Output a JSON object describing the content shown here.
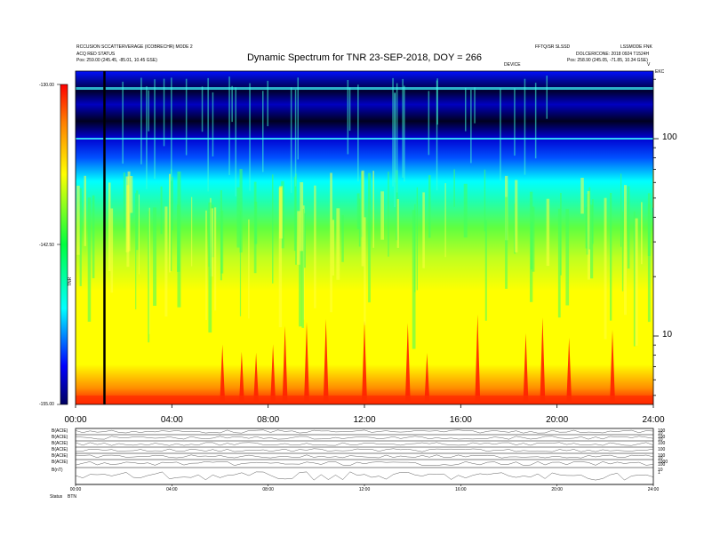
{
  "header": {
    "left_line1": "RCCUSION SCCATTERVERAGE (ICOBRECHR) MODE 2",
    "left_line2": "ACQ RED STATUS",
    "left_pos": "Pos:    259.00 (245.45, -85.01, 10.45 GSE)",
    "right_line1": "FFTQ/SR SLSSD",
    "right_line2": "LSSMODE FNK",
    "right_line3": "DOLCERICONE: 2018 0924 T1524H",
    "right_pos": "Pos:    258.90 (245.05, -71.85, 10.34 GSE)",
    "device_label": "DEVICE",
    "corner_label": "EKC",
    "arrow_label": "V"
  },
  "chart_data": {
    "type": "heatmap",
    "title": "Dynamic Spectrum for TNR 23-SEP-2018, DOY = 266",
    "colorbar": {
      "min": -155.0,
      "mid": -142.5,
      "max": -130.0,
      "tick_labels": [
        "-130.00",
        "-142.50",
        "-155.00"
      ],
      "label": "TNR",
      "colors": [
        "#000080",
        "#0000ff",
        "#00ffff",
        "#00ff00",
        "#ffff00",
        "#ff8000",
        "#ff0000"
      ]
    },
    "x_axis": {
      "range_hours": [
        0,
        24
      ],
      "tick_hours": [
        0,
        4,
        8,
        12,
        16,
        20,
        24
      ],
      "tick_labels": [
        "00:00",
        "04:00",
        "08:00",
        "12:00",
        "16:00",
        "20:00",
        "24:00"
      ]
    },
    "y_axis": {
      "scale": "log",
      "range": [
        4.5,
        220
      ],
      "tick_values": [
        10,
        100
      ],
      "tick_labels": [
        "10",
        "100"
      ],
      "side": "right"
    },
    "marker_line_hours": 1.2,
    "bright_bursts_hours": [
      6.1,
      6.9,
      7.5,
      8.2,
      8.7,
      9.6,
      10.4,
      12.0,
      13.8,
      14.6,
      16.7,
      18.7,
      19.4,
      20.5,
      22.3
    ],
    "panels": [
      {
        "label": "B(ACIE)",
        "right_ticks": [
          "100",
          "10"
        ]
      },
      {
        "label": "B(ACIE)",
        "right_ticks": [
          "100",
          "10"
        ]
      },
      {
        "label": "B(ACIE)",
        "right_ticks": [
          "100"
        ]
      },
      {
        "label": "B(ACIE)",
        "right_ticks": [
          "100"
        ]
      },
      {
        "label": "B(ACIE)",
        "right_ticks": [
          "100",
          "10"
        ]
      },
      {
        "label": "B(ACIE)",
        "right_ticks": [
          "1000",
          "100"
        ]
      },
      {
        "label": "B(nT)",
        "right_ticks": [
          "10",
          "1"
        ]
      }
    ],
    "panel_x_tick_labels": [
      "00:00",
      "04:00",
      "08:00",
      "12:00",
      "16:00",
      "20:00",
      "24:00"
    ],
    "footer_label": "Status",
    "footer_value": "BTN"
  }
}
